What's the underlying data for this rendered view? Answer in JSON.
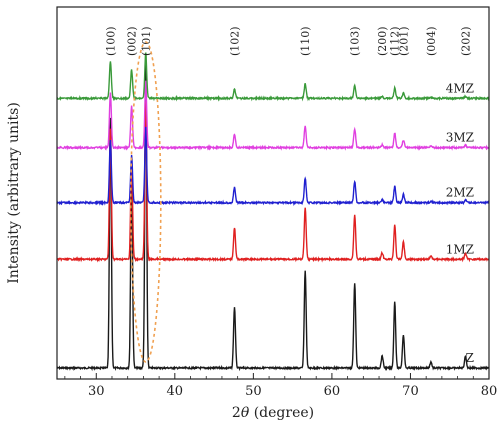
{
  "chart_data": {
    "type": "line",
    "title": "",
    "xlabel": "2θ (degree)",
    "xlabel_prefix": "2",
    "xlabel_theta": "θ",
    "xlabel_suffix": " (degree)",
    "ylabel": "Intensity (arbitrary units)",
    "xlim": [
      25,
      80
    ],
    "x_ticks": [
      30,
      40,
      50,
      60,
      70,
      80
    ],
    "y_ticks_shown": false,
    "grid": false,
    "stacked_offsets": true,
    "series": [
      {
        "name": "Z",
        "color": "#1a1a1a",
        "level": 0.0,
        "scale": 1.0
      },
      {
        "name": "1MZ",
        "color": "#e02020",
        "level": 0.375,
        "scale": 0.52
      },
      {
        "name": "2MZ",
        "color": "#2020d0",
        "level": 0.57,
        "scale": 0.25
      },
      {
        "name": "3MZ",
        "color": "#e040e0",
        "level": 0.76,
        "scale": 0.22
      },
      {
        "name": "4MZ",
        "color": "#3a9a3a",
        "level": 0.93,
        "scale": 0.15
      }
    ],
    "peaks": [
      {
        "hkl": "(100)",
        "x": 31.8,
        "rel": 0.82
      },
      {
        "hkl": "(002)",
        "x": 34.5,
        "rel": 0.62
      },
      {
        "hkl": "(101)",
        "x": 36.3,
        "rel": 1.0
      },
      {
        "hkl": "(102)",
        "x": 47.6,
        "rel": 0.2
      },
      {
        "hkl": "(110)",
        "x": 56.6,
        "rel": 0.32
      },
      {
        "hkl": "(103)",
        "x": 62.9,
        "rel": 0.28
      },
      {
        "hkl": "(200)",
        "x": 66.4,
        "rel": 0.04
      },
      {
        "hkl": "(112)",
        "x": 68.0,
        "rel": 0.22
      },
      {
        "hkl": "(201)",
        "x": 69.1,
        "rel": 0.11
      },
      {
        "hkl": "(004)",
        "x": 72.6,
        "rel": 0.02
      },
      {
        "hkl": "(202)",
        "x": 77.0,
        "rel": 0.04
      }
    ],
    "annotations": {
      "highlight": "(101) peak region",
      "highlight_style": "dashed ellipse",
      "highlight_color": "#f0a050"
    }
  }
}
